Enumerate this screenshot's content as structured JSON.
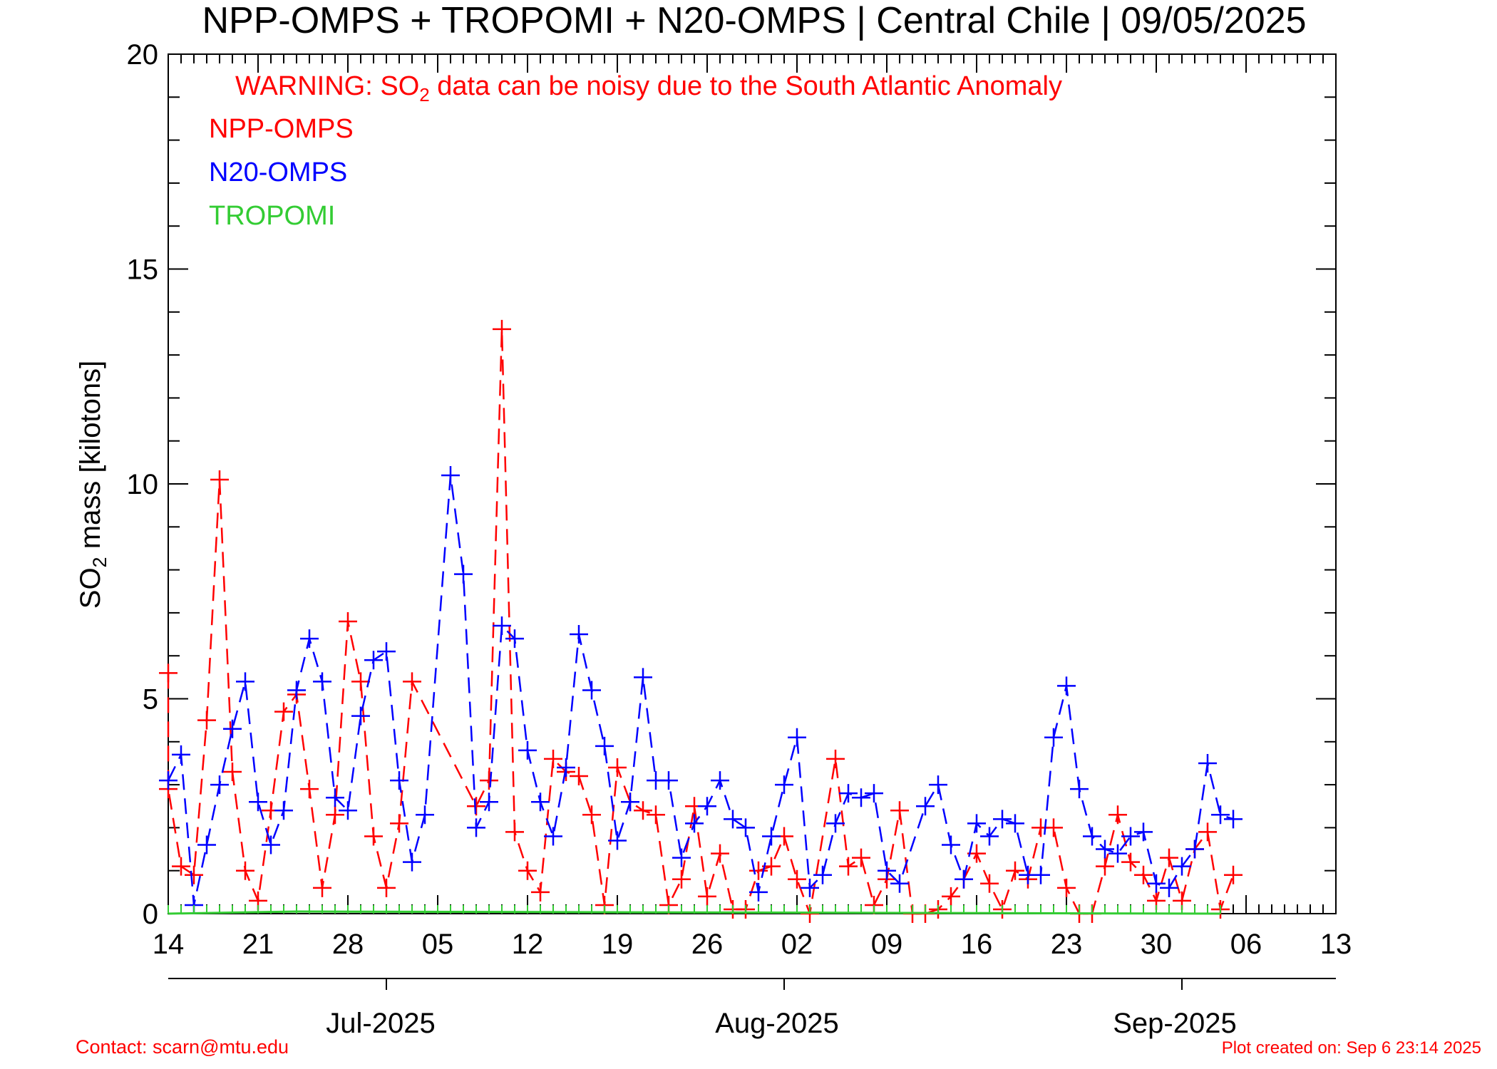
{
  "chart_data": {
    "type": "line",
    "title": "NPP-OMPS + TROPOMI + N20-OMPS | Central Chile | 09/05/2025",
    "warning": {
      "prefix": "WARNING: SO",
      "subscript": "2",
      "suffix": " data can be noisy due to the South Atlantic Anomaly"
    },
    "ylabel": {
      "prefix": "SO",
      "subscript": "2",
      "suffix": " mass [kilotons]"
    },
    "ylim": [
      0,
      20
    ],
    "yticks": [
      "0",
      "5",
      "10",
      "15",
      "20"
    ],
    "x_start": "2025-06-14",
    "x_end": "2025-09-13",
    "xtick_labels": [
      "14",
      "21",
      "28",
      "05",
      "12",
      "19",
      "26",
      "02",
      "09",
      "16",
      "23",
      "30",
      "06",
      "13"
    ],
    "month_labels": [
      "Jul-2025",
      "Aug-2025",
      "Sep-2025"
    ],
    "grid": false,
    "legend_position": "top-left",
    "series": [
      {
        "name": "NPP-OMPS",
        "color": "#ff0000",
        "marker": "plus",
        "line": "dashed",
        "points": [
          [
            "2025-06-14",
            5.6
          ],
          [
            "2025-06-14",
            2.9
          ],
          [
            "2025-06-15",
            1.1
          ],
          [
            "2025-06-16",
            0.9
          ],
          [
            "2025-06-17",
            4.5
          ],
          [
            "2025-06-18",
            10.1
          ],
          [
            "2025-06-19",
            3.3
          ],
          [
            "2025-06-20",
            1.0
          ],
          [
            "2025-06-21",
            0.3
          ],
          [
            "2025-06-22",
            2.4
          ],
          [
            "2025-06-23",
            4.7
          ],
          [
            "2025-06-24",
            5.1
          ],
          [
            "2025-06-25",
            2.9
          ],
          [
            "2025-06-26",
            0.6
          ],
          [
            "2025-06-27",
            2.3
          ],
          [
            "2025-06-28",
            6.8
          ],
          [
            "2025-06-29",
            5.4
          ],
          [
            "2025-06-30",
            1.8
          ],
          [
            "2025-07-01",
            0.6
          ],
          [
            "2025-07-02",
            2.1
          ],
          [
            "2025-07-03",
            5.4
          ],
          [
            "2025-07-08",
            2.5
          ],
          [
            "2025-07-09",
            3.1
          ],
          [
            "2025-07-10",
            13.6
          ],
          [
            "2025-07-11",
            1.9
          ],
          [
            "2025-07-12",
            1.0
          ],
          [
            "2025-07-13",
            0.5
          ],
          [
            "2025-07-14",
            3.6
          ],
          [
            "2025-07-15",
            3.3
          ],
          [
            "2025-07-16",
            3.2
          ],
          [
            "2025-07-17",
            2.3
          ],
          [
            "2025-07-18",
            0.2
          ],
          [
            "2025-07-19",
            3.4
          ],
          [
            "2025-07-20",
            2.6
          ],
          [
            "2025-07-21",
            2.4
          ],
          [
            "2025-07-22",
            2.3
          ],
          [
            "2025-07-23",
            0.2
          ],
          [
            "2025-07-24",
            0.8
          ],
          [
            "2025-07-25",
            2.5
          ],
          [
            "2025-07-26",
            0.4
          ],
          [
            "2025-07-27",
            1.4
          ],
          [
            "2025-07-28",
            0.1
          ],
          [
            "2025-07-29",
            0.1
          ],
          [
            "2025-07-30",
            1.0
          ],
          [
            "2025-07-31",
            1.1
          ],
          [
            "2025-08-01",
            1.8
          ],
          [
            "2025-08-02",
            0.8
          ],
          [
            "2025-08-03",
            0.0
          ],
          [
            "2025-08-05",
            3.6
          ],
          [
            "2025-08-06",
            1.1
          ],
          [
            "2025-08-07",
            1.3
          ],
          [
            "2025-08-08",
            0.2
          ],
          [
            "2025-08-09",
            0.8
          ],
          [
            "2025-08-10",
            2.4
          ],
          [
            "2025-08-11",
            0.0
          ],
          [
            "2025-08-12",
            0.0
          ],
          [
            "2025-08-13",
            0.1
          ],
          [
            "2025-08-14",
            0.4
          ],
          [
            "2025-08-15",
            0.8
          ],
          [
            "2025-08-16",
            1.4
          ],
          [
            "2025-08-17",
            0.7
          ],
          [
            "2025-08-18",
            0.1
          ],
          [
            "2025-08-19",
            1.0
          ],
          [
            "2025-08-20",
            0.8
          ],
          [
            "2025-08-21",
            2.0
          ],
          [
            "2025-08-22",
            2.0
          ],
          [
            "2025-08-23",
            0.6
          ],
          [
            "2025-08-24",
            0.0
          ],
          [
            "2025-08-25",
            0.0
          ],
          [
            "2025-08-26",
            1.1
          ],
          [
            "2025-08-27",
            2.3
          ],
          [
            "2025-08-28",
            1.2
          ],
          [
            "2025-08-29",
            0.9
          ],
          [
            "2025-08-30",
            0.3
          ],
          [
            "2025-08-31",
            1.3
          ],
          [
            "2025-09-01",
            0.3
          ],
          [
            "2025-09-02",
            1.5
          ],
          [
            "2025-09-03",
            1.9
          ],
          [
            "2025-09-04",
            0.1
          ],
          [
            "2025-09-05",
            0.9
          ]
        ]
      },
      {
        "name": "N20-OMPS",
        "color": "#0000ff",
        "marker": "plus",
        "line": "dashed",
        "points": [
          [
            "2025-06-14",
            3.1
          ],
          [
            "2025-06-15",
            3.7
          ],
          [
            "2025-06-16",
            0.2
          ],
          [
            "2025-06-17",
            1.6
          ],
          [
            "2025-06-18",
            3.0
          ],
          [
            "2025-06-19",
            4.3
          ],
          [
            "2025-06-20",
            5.4
          ],
          [
            "2025-06-21",
            2.6
          ],
          [
            "2025-06-22",
            1.6
          ],
          [
            "2025-06-23",
            2.4
          ],
          [
            "2025-06-24",
            5.2
          ],
          [
            "2025-06-25",
            6.4
          ],
          [
            "2025-06-26",
            5.4
          ],
          [
            "2025-06-27",
            2.7
          ],
          [
            "2025-06-28",
            2.4
          ],
          [
            "2025-06-29",
            4.6
          ],
          [
            "2025-06-30",
            5.9
          ],
          [
            "2025-07-01",
            6.1
          ],
          [
            "2025-07-02",
            3.1
          ],
          [
            "2025-07-03",
            1.2
          ],
          [
            "2025-07-04",
            2.3
          ],
          [
            "2025-07-06",
            10.2
          ],
          [
            "2025-07-07",
            7.9
          ],
          [
            "2025-07-08",
            2.0
          ],
          [
            "2025-07-09",
            2.6
          ],
          [
            "2025-07-10",
            6.7
          ],
          [
            "2025-07-11",
            6.4
          ],
          [
            "2025-07-12",
            3.8
          ],
          [
            "2025-07-13",
            2.6
          ],
          [
            "2025-07-14",
            1.8
          ],
          [
            "2025-07-15",
            3.4
          ],
          [
            "2025-07-16",
            6.5
          ],
          [
            "2025-07-17",
            5.2
          ],
          [
            "2025-07-18",
            3.9
          ],
          [
            "2025-07-19",
            1.7
          ],
          [
            "2025-07-20",
            2.6
          ],
          [
            "2025-07-21",
            5.5
          ],
          [
            "2025-07-22",
            3.1
          ],
          [
            "2025-07-23",
            3.1
          ],
          [
            "2025-07-24",
            1.3
          ],
          [
            "2025-07-25",
            2.1
          ],
          [
            "2025-07-26",
            2.5
          ],
          [
            "2025-07-27",
            3.1
          ],
          [
            "2025-07-28",
            2.2
          ],
          [
            "2025-07-29",
            2.0
          ],
          [
            "2025-07-30",
            0.5
          ],
          [
            "2025-07-31",
            1.8
          ],
          [
            "2025-08-01",
            3.0
          ],
          [
            "2025-08-02",
            4.1
          ],
          [
            "2025-08-03",
            0.6
          ],
          [
            "2025-08-04",
            0.9
          ],
          [
            "2025-08-05",
            2.1
          ],
          [
            "2025-08-06",
            2.8
          ],
          [
            "2025-08-07",
            2.7
          ],
          [
            "2025-08-08",
            2.8
          ],
          [
            "2025-08-09",
            1.0
          ],
          [
            "2025-08-10",
            0.7
          ],
          [
            "2025-08-12",
            2.5
          ],
          [
            "2025-08-13",
            3.0
          ],
          [
            "2025-08-14",
            1.6
          ],
          [
            "2025-08-15",
            0.8
          ],
          [
            "2025-08-16",
            2.1
          ],
          [
            "2025-08-17",
            1.8
          ],
          [
            "2025-08-18",
            2.2
          ],
          [
            "2025-08-19",
            2.1
          ],
          [
            "2025-08-20",
            0.9
          ],
          [
            "2025-08-21",
            0.9
          ],
          [
            "2025-08-22",
            4.1
          ],
          [
            "2025-08-23",
            5.3
          ],
          [
            "2025-08-24",
            2.9
          ],
          [
            "2025-08-25",
            1.8
          ],
          [
            "2025-08-26",
            1.5
          ],
          [
            "2025-08-27",
            1.4
          ],
          [
            "2025-08-28",
            1.8
          ],
          [
            "2025-08-29",
            1.9
          ],
          [
            "2025-08-30",
            0.7
          ],
          [
            "2025-08-31",
            0.6
          ],
          [
            "2025-09-01",
            1.1
          ],
          [
            "2025-09-02",
            1.5
          ],
          [
            "2025-09-03",
            3.5
          ],
          [
            "2025-09-04",
            2.3
          ],
          [
            "2025-09-05",
            2.2
          ]
        ]
      },
      {
        "name": "TROPOMI",
        "color": "#33cc33",
        "marker": "tick",
        "line": "solid",
        "note": "near-zero daily values throughout",
        "points": [
          [
            "2025-06-14",
            0.0
          ],
          [
            "2025-06-24",
            0.05
          ],
          [
            "2025-09-04",
            0.0
          ]
        ]
      }
    ]
  },
  "footer": {
    "contact": "Contact: scarn@mtu.edu",
    "created": "Plot created on: Sep  6 23:14 2025"
  }
}
